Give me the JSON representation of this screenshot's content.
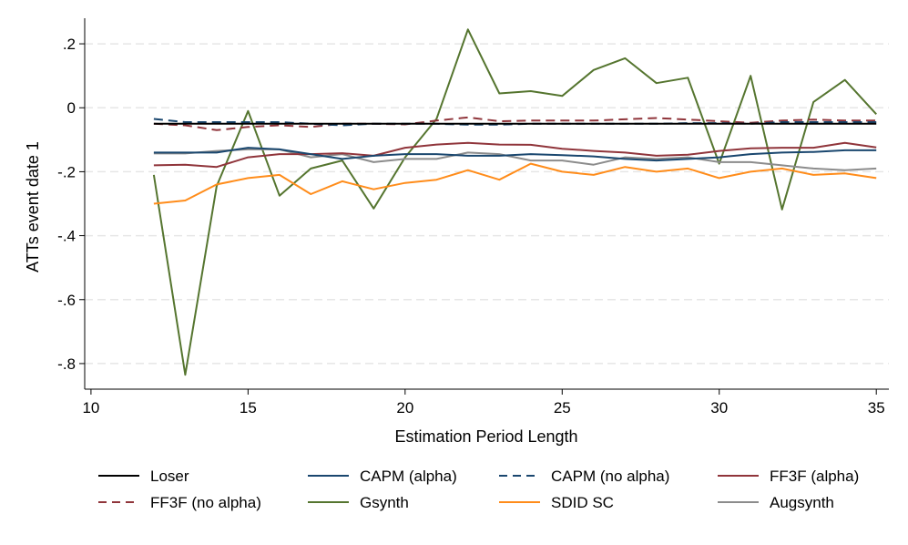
{
  "chart_data": {
    "type": "line",
    "title": "",
    "xlabel": "Estimation Period Length",
    "ylabel": "ATTs event date 1",
    "xlim": [
      9.8,
      35.4
    ],
    "ylim": [
      -0.88,
      0.28
    ],
    "xticks": [
      10,
      15,
      20,
      25,
      30,
      35
    ],
    "yticks": [
      0.2,
      0,
      -0.2,
      -0.4,
      -0.6,
      -0.8
    ],
    "ytick_labels": [
      ".2",
      "0",
      "-.2",
      "-.4",
      "-.6",
      "-.8"
    ],
    "grid": true,
    "legend_position": "bottom",
    "x": [
      12,
      13,
      14,
      15,
      16,
      17,
      18,
      19,
      20,
      21,
      22,
      23,
      24,
      25,
      26,
      27,
      28,
      29,
      30,
      31,
      32,
      33,
      34,
      35
    ],
    "series": [
      {
        "name": "Loser",
        "color": "#000000",
        "dash": "solid",
        "values": [
          -0.05,
          -0.05,
          -0.05,
          -0.05,
          -0.05,
          -0.05,
          -0.05,
          -0.05,
          -0.05,
          -0.05,
          -0.05,
          -0.05,
          -0.05,
          -0.05,
          -0.05,
          -0.05,
          -0.05,
          -0.05,
          -0.05,
          -0.05,
          -0.05,
          -0.05,
          -0.05,
          -0.05
        ]
      },
      {
        "name": "CAPM (alpha)",
        "color": "#1a476f",
        "dash": "solid",
        "values": [
          -0.14,
          -0.14,
          -0.14,
          -0.125,
          -0.13,
          -0.145,
          -0.16,
          -0.15,
          -0.145,
          -0.145,
          -0.15,
          -0.15,
          -0.145,
          -0.148,
          -0.152,
          -0.16,
          -0.165,
          -0.16,
          -0.155,
          -0.145,
          -0.14,
          -0.138,
          -0.133,
          -0.133
        ]
      },
      {
        "name": "CAPM (no alpha)",
        "color": "#1a476f",
        "dash": "dashed",
        "values": [
          -0.035,
          -0.045,
          -0.045,
          -0.045,
          -0.045,
          -0.05,
          -0.055,
          -0.05,
          -0.05,
          -0.05,
          -0.053,
          -0.053,
          -0.05,
          -0.05,
          -0.05,
          -0.05,
          -0.05,
          -0.048,
          -0.048,
          -0.05,
          -0.045,
          -0.045,
          -0.045,
          -0.045
        ]
      },
      {
        "name": "FF3F (alpha)",
        "color": "#90353b",
        "dash": "solid",
        "values": [
          -0.18,
          -0.178,
          -0.185,
          -0.155,
          -0.145,
          -0.145,
          -0.142,
          -0.15,
          -0.125,
          -0.115,
          -0.11,
          -0.115,
          -0.116,
          -0.128,
          -0.135,
          -0.14,
          -0.15,
          -0.147,
          -0.135,
          -0.127,
          -0.125,
          -0.125,
          -0.11,
          -0.124
        ]
      },
      {
        "name": "FF3F (no alpha)",
        "color": "#90353b",
        "dash": "dashed",
        "values": [
          -0.05,
          -0.055,
          -0.07,
          -0.06,
          -0.055,
          -0.06,
          -0.05,
          -0.05,
          -0.052,
          -0.04,
          -0.03,
          -0.042,
          -0.04,
          -0.04,
          -0.04,
          -0.036,
          -0.032,
          -0.037,
          -0.042,
          -0.047,
          -0.04,
          -0.037,
          -0.04,
          -0.04
        ]
      },
      {
        "name": "Gsynth",
        "color": "#55752f",
        "dash": "solid",
        "values": [
          -0.21,
          -0.835,
          -0.245,
          -0.01,
          -0.275,
          -0.19,
          -0.165,
          -0.315,
          -0.155,
          -0.035,
          0.245,
          0.045,
          0.052,
          0.037,
          0.118,
          0.155,
          0.077,
          0.094,
          -0.175,
          0.1,
          -0.318,
          0.018,
          0.087,
          -0.02
        ]
      },
      {
        "name": "SDID SC",
        "color": "#ff8c1a",
        "dash": "solid",
        "values": [
          -0.3,
          -0.29,
          -0.24,
          -0.22,
          -0.21,
          -0.27,
          -0.23,
          -0.255,
          -0.235,
          -0.225,
          -0.195,
          -0.225,
          -0.175,
          -0.2,
          -0.21,
          -0.185,
          -0.2,
          -0.19,
          -0.22,
          -0.2,
          -0.19,
          -0.21,
          -0.205,
          -0.22
        ]
      },
      {
        "name": "Augsynth",
        "color": "#8c8c8c",
        "dash": "solid",
        "values": [
          -0.143,
          -0.143,
          -0.135,
          -0.13,
          -0.13,
          -0.155,
          -0.145,
          -0.17,
          -0.16,
          -0.16,
          -0.14,
          -0.145,
          -0.165,
          -0.165,
          -0.178,
          -0.155,
          -0.16,
          -0.155,
          -0.17,
          -0.17,
          -0.18,
          -0.19,
          -0.195,
          -0.19
        ]
      }
    ]
  }
}
